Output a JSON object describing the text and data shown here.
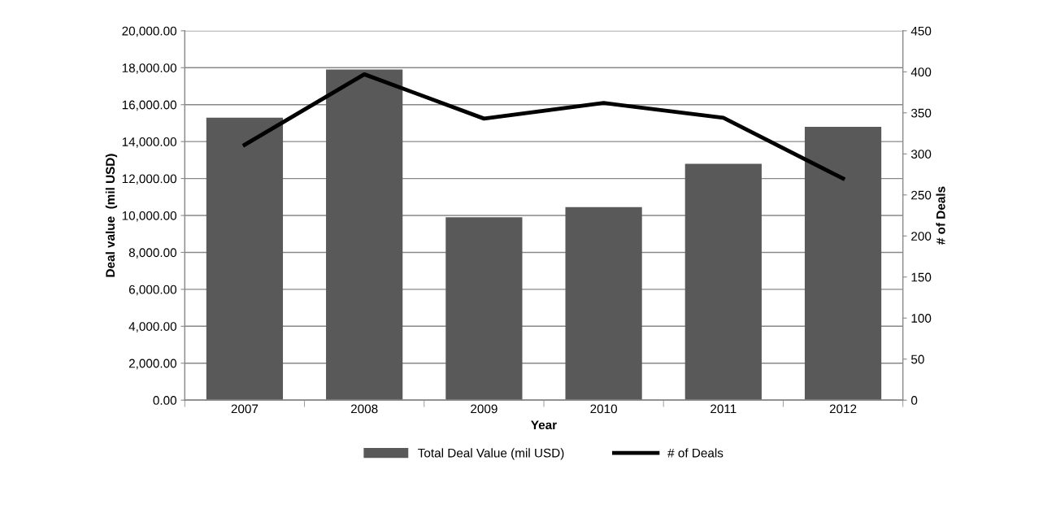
{
  "chart_data": {
    "type": "bar",
    "xlabel": "Year",
    "ylabel": "Deal value  (mil USD)",
    "y2label": "# of Deals",
    "categories": [
      "2007",
      "2008",
      "2009",
      "2010",
      "2011",
      "2012"
    ],
    "series": [
      {
        "name": "Total Deal Value (mil USD)",
        "color": "#595959",
        "values": [
          15300,
          17900,
          9900,
          10450,
          12800,
          14800
        ]
      },
      {
        "name": "# of Deals",
        "type": "line",
        "axis": "y2",
        "color": "#000000",
        "values": [
          311,
          397,
          343,
          362,
          344,
          270
        ]
      }
    ],
    "ylim": [
      0,
      20000
    ],
    "yticks": [
      {
        "value": 0,
        "label": "0.00"
      },
      {
        "value": 2000,
        "label": "2,000.00"
      },
      {
        "value": 4000,
        "label": "4,000.00"
      },
      {
        "value": 6000,
        "label": "6,000.00"
      },
      {
        "value": 8000,
        "label": "8,000.00"
      },
      {
        "value": 10000,
        "label": "10,000.00"
      },
      {
        "value": 12000,
        "label": "12,000.00"
      },
      {
        "value": 14000,
        "label": "14,000.00"
      },
      {
        "value": 16000,
        "label": "16,000.00"
      },
      {
        "value": 18000,
        "label": "18,000.00"
      },
      {
        "value": 20000,
        "label": "20,000.00"
      }
    ],
    "y2lim": [
      0,
      450
    ],
    "y2ticks": [
      0,
      50,
      100,
      150,
      200,
      250,
      300,
      350,
      400,
      450
    ],
    "grid": "y",
    "legend": "bottom",
    "marker": "none",
    "line_style": "solid"
  }
}
